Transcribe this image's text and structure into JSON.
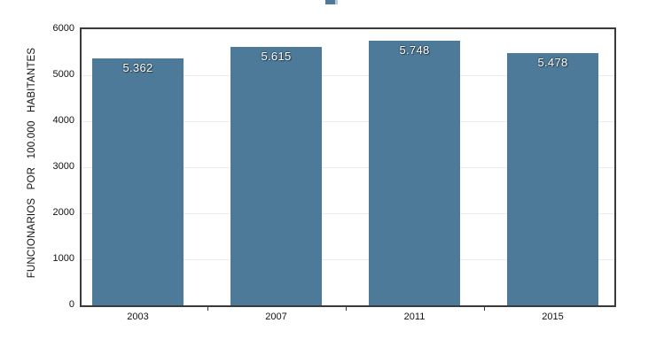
{
  "decoration": {
    "title_remnant_color": "#4d7a99",
    "title_remnant_edge_color": "#b9cbd8"
  },
  "chart_data": {
    "type": "bar",
    "title": "",
    "categories": [
      "2003",
      "2007",
      "2011",
      "2015"
    ],
    "values": [
      5362,
      5615,
      5748,
      5478
    ],
    "value_labels": [
      "5.362",
      "5.615",
      "5.748",
      "5.478"
    ],
    "xlabel": "",
    "ylabel": "FUNCIONARIOS POR 100.000 HABITANTES",
    "ylim": [
      0,
      6000
    ],
    "yticks": [
      0,
      1000,
      2000,
      3000,
      4000,
      5000,
      6000
    ],
    "grid": true,
    "legend_position": "none",
    "bar_color": "#4d7a99",
    "value_label_color": "#ffffff",
    "frame_color": "#3a3a3a",
    "gridline_color": "#ebebeb"
  }
}
